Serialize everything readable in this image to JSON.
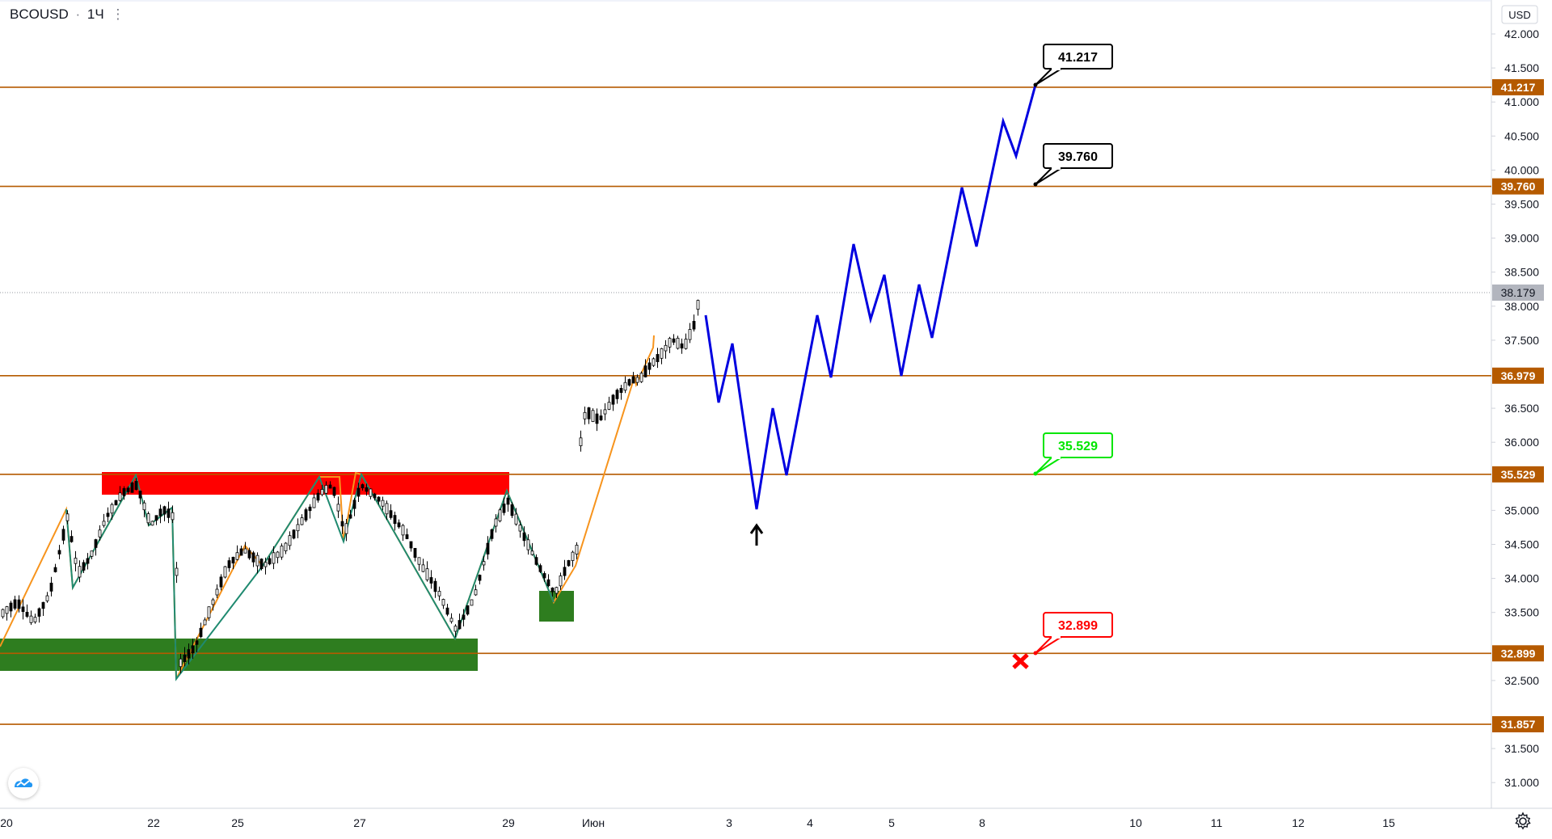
{
  "header": {
    "symbol": "BCOUSD",
    "separator": "·",
    "interval": "1Ч",
    "menu_glyph": "⋮"
  },
  "price_axis": {
    "currency": "USD",
    "ticks": [
      "42.000",
      "41.500",
      "41.000",
      "40.500",
      "40.000",
      "39.500",
      "39.000",
      "38.500",
      "38.000",
      "37.500",
      "36.500",
      "36.000",
      "35.000",
      "34.500",
      "34.000",
      "33.500",
      "32.500",
      "31.500",
      "31.000"
    ],
    "current_price": "38.179"
  },
  "time_axis": {
    "labels": [
      "20",
      "22",
      "25",
      "27",
      "29",
      "Июн",
      "3",
      "4",
      "5",
      "8",
      "10",
      "11",
      "12",
      "15"
    ]
  },
  "levels": [
    {
      "value": 41.217,
      "label": "41.217"
    },
    {
      "value": 39.76,
      "label": "39.760"
    },
    {
      "value": 36.979,
      "label": "36.979"
    },
    {
      "value": 35.529,
      "label": "35.529"
    },
    {
      "value": 32.899,
      "label": "32.899"
    },
    {
      "value": 31.857,
      "label": "31.857"
    }
  ],
  "callouts": [
    {
      "label": "41.217",
      "color": "#000000"
    },
    {
      "label": "39.760",
      "color": "#000000"
    },
    {
      "label": "35.529",
      "color": "#00e600"
    },
    {
      "label": "32.899",
      "color": "#ff0000"
    }
  ],
  "zones": [
    {
      "name": "resistance-zone",
      "color": "#ff0000"
    },
    {
      "name": "support-zone-main",
      "color": "#2e7d1f"
    },
    {
      "name": "support-zone-small",
      "color": "#2e7d1f"
    }
  ],
  "colors": {
    "level_line": "#b55a00",
    "forecast_line": "#0000e0",
    "zigzag_up": "#f7941d",
    "zigzag_down": "#1f8a70",
    "axis_text": "#131722",
    "candle": "#000000"
  },
  "icons": {
    "forecast_arrow": "up-arrow-icon",
    "invalidation": "red-x-icon",
    "logo": "tradingview-logo-icon",
    "settings": "gear-icon"
  }
}
